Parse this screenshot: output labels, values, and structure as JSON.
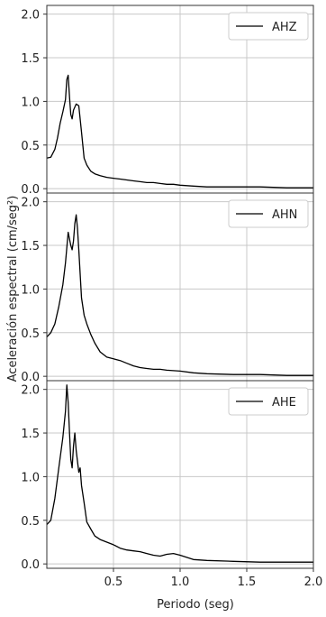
{
  "chart_data": [
    {
      "type": "line",
      "xlim": [
        0.0,
        2.0
      ],
      "ylim": [
        -0.05,
        2.1
      ],
      "yticks": [
        "0.0",
        "0.5",
        "1.0",
        "1.5",
        "2.0"
      ],
      "grid": true,
      "legend_position": "top-right",
      "series": [
        {
          "name": "AHZ",
          "color": "#000000",
          "x": [
            0.0,
            0.03,
            0.06,
            0.08,
            0.1,
            0.12,
            0.14,
            0.15,
            0.16,
            0.17,
            0.18,
            0.19,
            0.2,
            0.22,
            0.24,
            0.26,
            0.28,
            0.3,
            0.33,
            0.36,
            0.4,
            0.45,
            0.5,
            0.55,
            0.6,
            0.65,
            0.7,
            0.75,
            0.8,
            0.85,
            0.9,
            0.95,
            1.0,
            1.1,
            1.2,
            1.4,
            1.6,
            1.8,
            2.0
          ],
          "y": [
            0.35,
            0.36,
            0.45,
            0.58,
            0.75,
            0.88,
            1.02,
            1.25,
            1.3,
            1.05,
            0.85,
            0.8,
            0.9,
            0.97,
            0.95,
            0.65,
            0.35,
            0.27,
            0.2,
            0.17,
            0.15,
            0.13,
            0.12,
            0.11,
            0.1,
            0.09,
            0.08,
            0.07,
            0.07,
            0.06,
            0.05,
            0.05,
            0.04,
            0.03,
            0.02,
            0.02,
            0.02,
            0.01,
            0.01
          ]
        }
      ]
    },
    {
      "type": "line",
      "xlim": [
        0.0,
        2.0
      ],
      "ylim": [
        -0.05,
        2.1
      ],
      "yticks": [
        "0.0",
        "0.5",
        "1.0",
        "1.5",
        "2.0"
      ],
      "grid": true,
      "legend_position": "top-right",
      "series": [
        {
          "name": "AHN",
          "color": "#000000",
          "x": [
            0.0,
            0.03,
            0.06,
            0.09,
            0.12,
            0.14,
            0.16,
            0.18,
            0.19,
            0.2,
            0.21,
            0.22,
            0.23,
            0.24,
            0.26,
            0.28,
            0.3,
            0.33,
            0.36,
            0.4,
            0.45,
            0.5,
            0.55,
            0.6,
            0.65,
            0.7,
            0.75,
            0.8,
            0.85,
            0.9,
            1.0,
            1.1,
            1.2,
            1.4,
            1.6,
            1.8,
            2.0
          ],
          "y": [
            0.45,
            0.5,
            0.6,
            0.8,
            1.05,
            1.3,
            1.65,
            1.5,
            1.45,
            1.55,
            1.75,
            1.85,
            1.7,
            1.45,
            0.9,
            0.7,
            0.6,
            0.48,
            0.38,
            0.28,
            0.22,
            0.2,
            0.18,
            0.15,
            0.12,
            0.1,
            0.09,
            0.08,
            0.08,
            0.07,
            0.06,
            0.04,
            0.03,
            0.02,
            0.02,
            0.01,
            0.01
          ]
        }
      ]
    },
    {
      "type": "line",
      "xlim": [
        0.0,
        2.0
      ],
      "ylim": [
        -0.05,
        2.1
      ],
      "yticks": [
        "0.0",
        "0.5",
        "1.0",
        "1.5",
        "2.0"
      ],
      "xticks": [
        "0.5",
        "1.0",
        "1.5",
        "2.0"
      ],
      "grid": true,
      "legend_position": "top-right",
      "series": [
        {
          "name": "AHE",
          "color": "#000000",
          "x": [
            0.0,
            0.03,
            0.06,
            0.09,
            0.12,
            0.14,
            0.15,
            0.16,
            0.17,
            0.18,
            0.19,
            0.2,
            0.21,
            0.22,
            0.24,
            0.25,
            0.26,
            0.28,
            0.3,
            0.33,
            0.36,
            0.4,
            0.45,
            0.5,
            0.55,
            0.6,
            0.65,
            0.7,
            0.75,
            0.8,
            0.85,
            0.9,
            0.95,
            1.0,
            1.1,
            1.2,
            1.4,
            1.6,
            1.8,
            2.0
          ],
          "y": [
            0.45,
            0.5,
            0.75,
            1.1,
            1.45,
            1.75,
            2.05,
            1.85,
            1.5,
            1.2,
            1.1,
            1.35,
            1.5,
            1.3,
            1.05,
            1.1,
            0.9,
            0.7,
            0.48,
            0.4,
            0.32,
            0.28,
            0.25,
            0.22,
            0.18,
            0.16,
            0.15,
            0.14,
            0.12,
            0.1,
            0.09,
            0.11,
            0.12,
            0.1,
            0.05,
            0.04,
            0.03,
            0.02,
            0.02,
            0.02
          ]
        }
      ]
    }
  ],
  "xlabel": "Periodo (seg)",
  "ylabel": "Aceleración espectral (cm/seg²)"
}
